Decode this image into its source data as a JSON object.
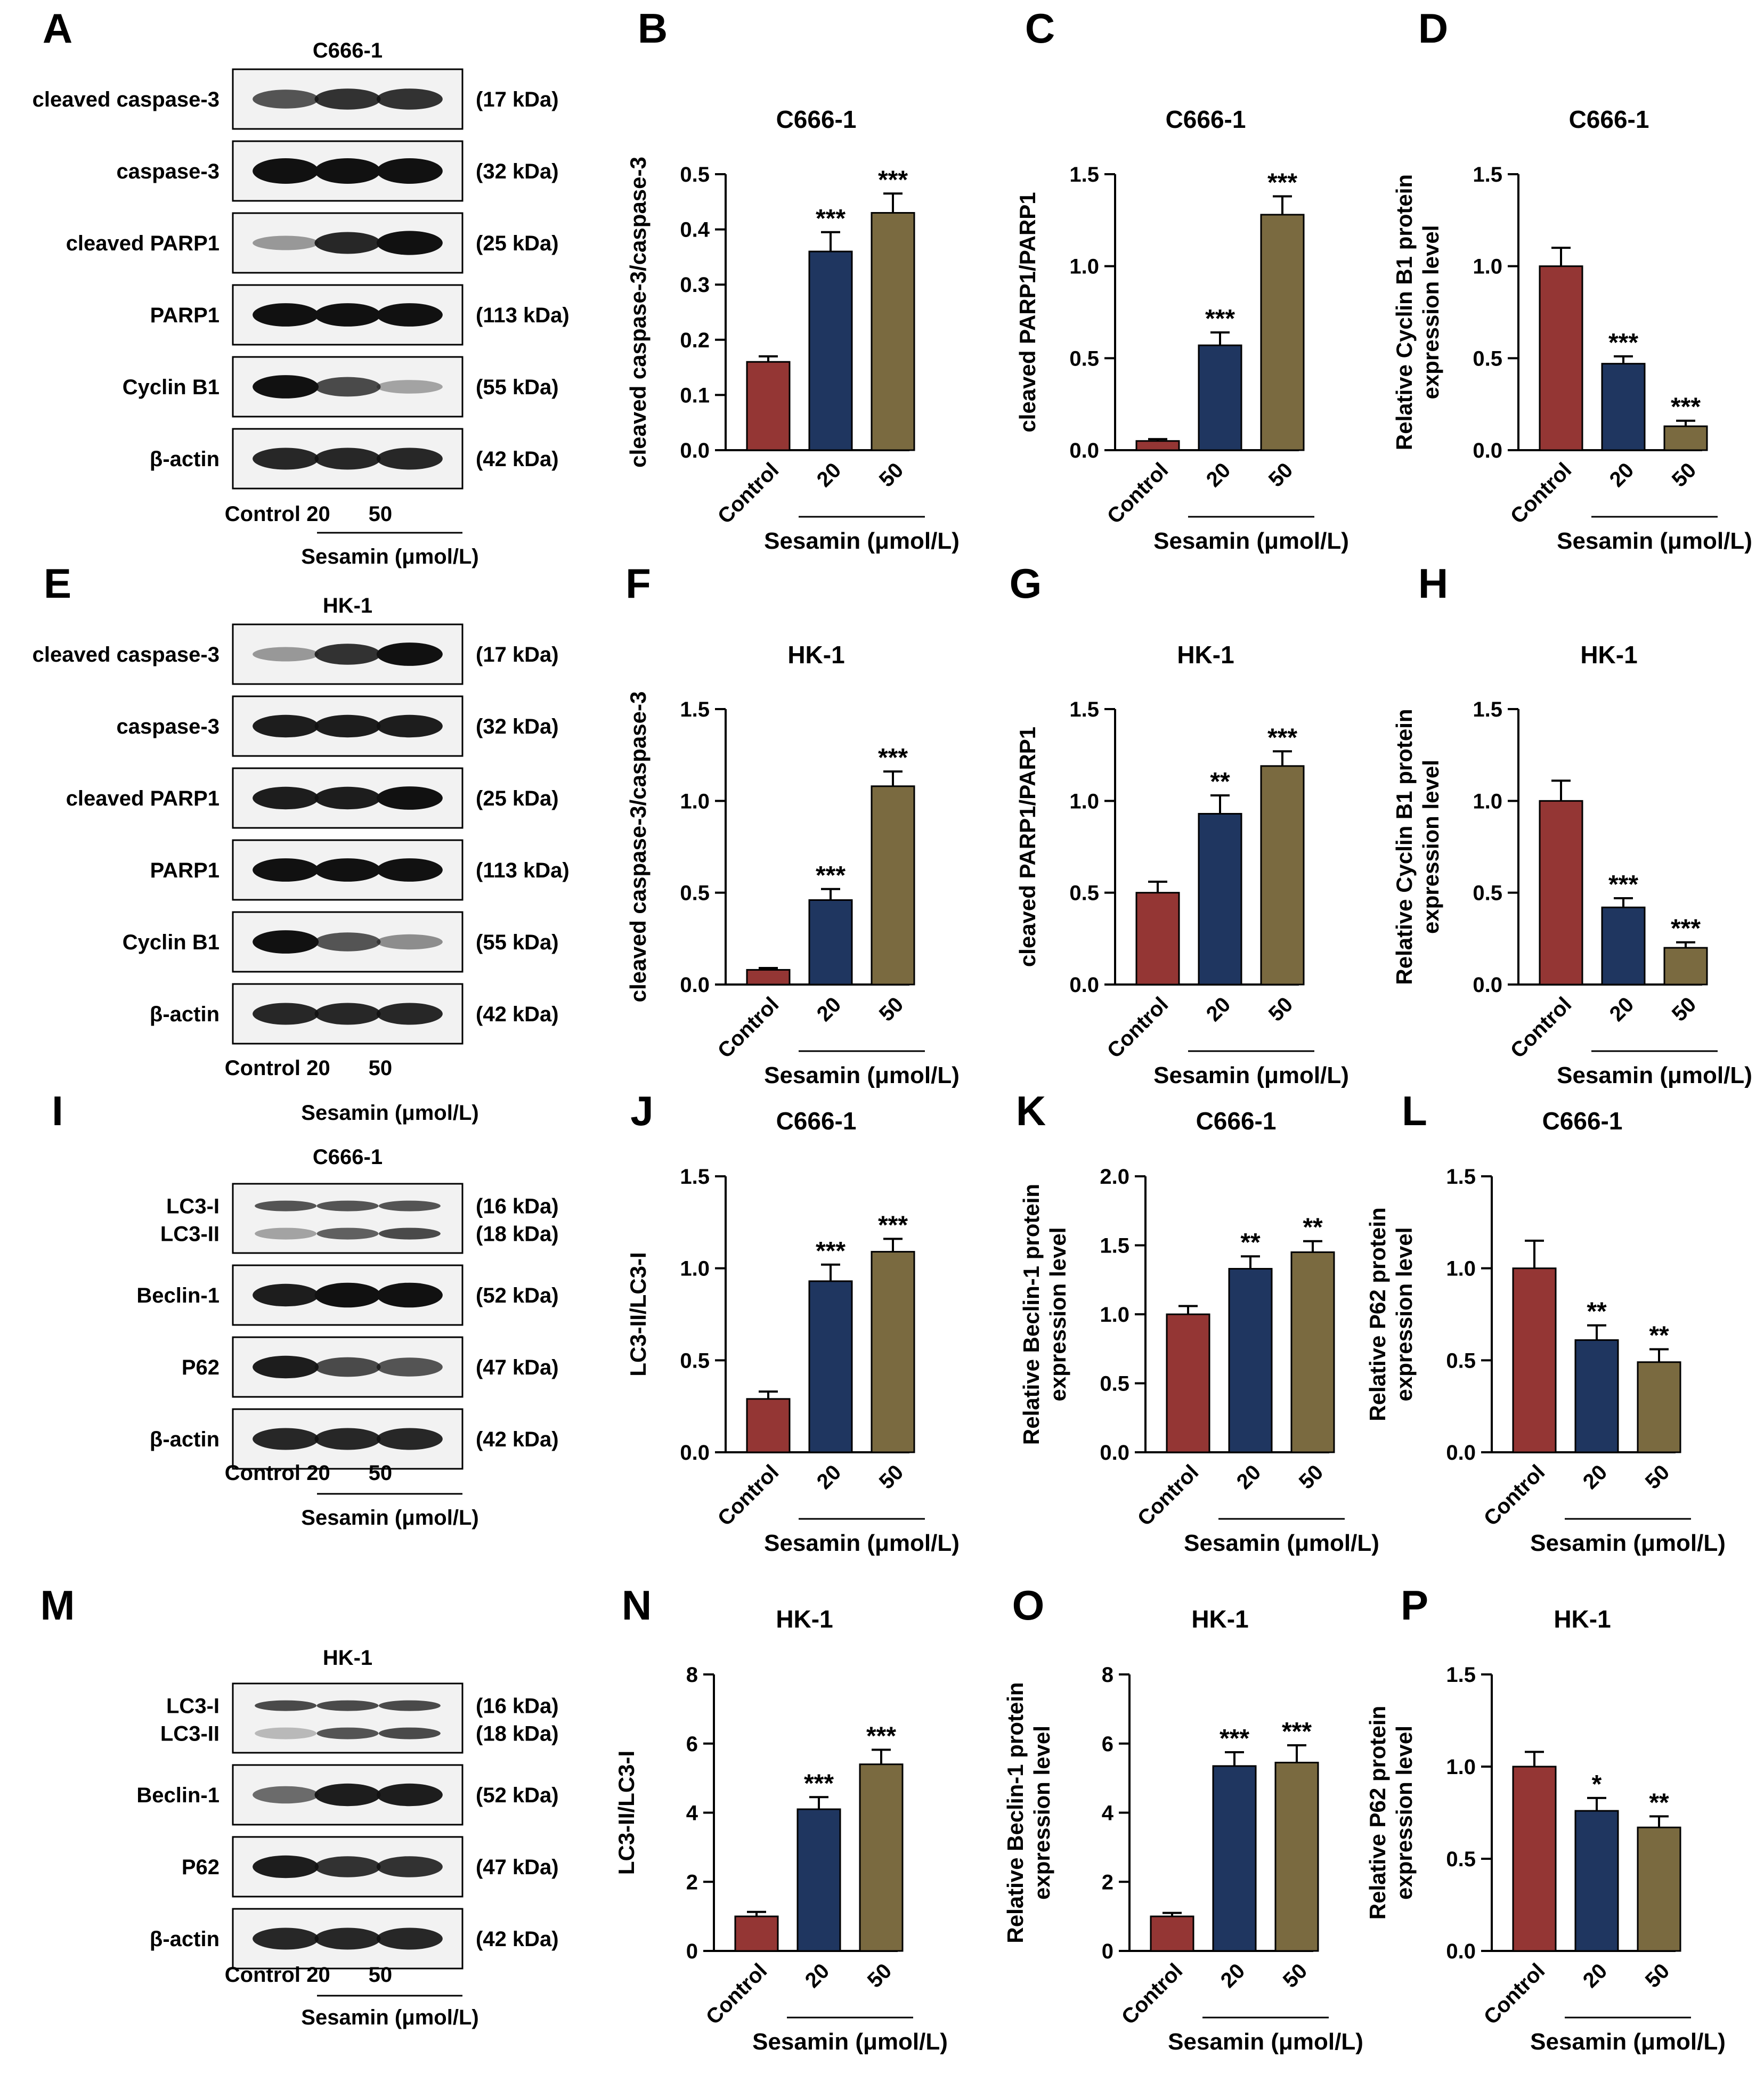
{
  "colors": {
    "control": "#943634",
    "dose20": "#1f3660",
    "dose50": "#7a6a40",
    "axis": "#000000",
    "blot_bg": "#f2f2f2",
    "band": "#111111"
  },
  "panel_letters": [
    "A",
    "B",
    "C",
    "D",
    "E",
    "F",
    "G",
    "H",
    "I",
    "J",
    "K",
    "L",
    "M",
    "N",
    "O",
    "P"
  ],
  "blots": [
    {
      "letter": "A",
      "cell": "C666-1",
      "rows": [
        {
          "label": "cleaved caspase-3",
          "kda": "(17 kDa)",
          "intensity": [
            0.55,
            0.7,
            0.7
          ]
        },
        {
          "label": "caspase-3",
          "kda": "(32 kDa)",
          "intensity": [
            1,
            1,
            1
          ]
        },
        {
          "label": "cleaved PARP1",
          "kda": "(25 kDa)",
          "intensity": [
            0.25,
            0.75,
            0.9
          ]
        },
        {
          "label": "PARP1",
          "kda": "(113 kDa)",
          "intensity": [
            0.85,
            0.85,
            0.85
          ]
        },
        {
          "label": "Cyclin B1",
          "kda": "(55 kDa)",
          "intensity": [
            0.85,
            0.6,
            0.2
          ]
        },
        {
          "label": "β-actin",
          "kda": "(42 kDa)",
          "intensity": [
            0.75,
            0.75,
            0.75
          ]
        }
      ],
      "xlabels": [
        "Control",
        "20",
        "50"
      ],
      "group_label": "Sesamin (μmol/L)"
    },
    {
      "letter": "E",
      "cell": "HK-1",
      "rows": [
        {
          "label": "cleaved caspase-3",
          "kda": "(17 kDa)",
          "intensity": [
            0.25,
            0.7,
            0.85
          ]
        },
        {
          "label": "caspase-3",
          "kda": "(32 kDa)",
          "intensity": [
            0.8,
            0.8,
            0.8
          ]
        },
        {
          "label": "cleaved PARP1",
          "kda": "(25 kDa)",
          "intensity": [
            0.8,
            0.8,
            0.85
          ]
        },
        {
          "label": "PARP1",
          "kda": "(113 kDa)",
          "intensity": [
            0.85,
            0.85,
            0.85
          ]
        },
        {
          "label": "Cyclin B1",
          "kda": "(55 kDa)",
          "intensity": [
            0.85,
            0.55,
            0.3
          ]
        },
        {
          "label": "β-actin",
          "kda": "(42 kDa)",
          "intensity": [
            0.75,
            0.75,
            0.75
          ]
        }
      ],
      "xlabels": [
        "Control",
        "20",
        "50"
      ],
      "group_label": "Sesamin (μmol/L)"
    },
    {
      "letter": "I",
      "cell": "C666-1",
      "rows": [
        {
          "label": "LC3-I",
          "label2": "LC3-II",
          "kda": "(16 kDa)",
          "kda2": "(18 kDa)",
          "intensity": [
            0.7,
            0.7,
            0.7
          ],
          "intensity2": [
            0.35,
            0.65,
            0.75
          ]
        },
        {
          "label": "Beclin-1",
          "kda": "(52 kDa)",
          "intensity": [
            0.8,
            0.95,
            0.95
          ]
        },
        {
          "label": "P62",
          "kda": "(47 kDa)",
          "intensity": [
            0.8,
            0.6,
            0.55
          ]
        },
        {
          "label": "β-actin",
          "kda": "(42 kDa)",
          "intensity": [
            0.75,
            0.75,
            0.75
          ]
        }
      ],
      "xlabels": [
        "Control",
        "20",
        "50"
      ],
      "group_label": "Sesamin (μmol/L)"
    },
    {
      "letter": "M",
      "cell": "HK-1",
      "rows": [
        {
          "label": "LC3-I",
          "label2": "LC3-II",
          "kda": "(16 kDa)",
          "kda2": "(18 kDa)",
          "intensity": [
            0.75,
            0.75,
            0.75
          ],
          "intensity2": [
            0.25,
            0.7,
            0.75
          ]
        },
        {
          "label": "Beclin-1",
          "kda": "(52 kDa)",
          "intensity": [
            0.45,
            0.8,
            0.8
          ]
        },
        {
          "label": "P62",
          "kda": "(47 kDa)",
          "intensity": [
            0.8,
            0.7,
            0.7
          ]
        },
        {
          "label": "β-actin",
          "kda": "(42 kDa)",
          "intensity": [
            0.75,
            0.75,
            0.75
          ]
        }
      ],
      "xlabels": [
        "Control",
        "20",
        "50"
      ],
      "group_label": "Sesamin (μmol/L)"
    }
  ],
  "chart_data": [
    {
      "letter": "B",
      "type": "bar",
      "title": "C666-1",
      "ylabel": "cleaved caspase-3/caspase-3",
      "ylim": [
        0,
        0.5
      ],
      "yticks": [
        "0.0",
        "0.1",
        "0.2",
        "0.3",
        "0.4",
        "0.5"
      ],
      "tickvals": [
        0,
        0.1,
        0.2,
        0.3,
        0.4,
        0.5
      ],
      "categories": [
        "Control",
        "20",
        "50"
      ],
      "values": [
        0.16,
        0.36,
        0.43
      ],
      "errors": [
        0.01,
        0.035,
        0.035
      ],
      "significance": [
        "",
        "***",
        "***"
      ],
      "xlabel": "Sesamin (μmol/L)"
    },
    {
      "letter": "C",
      "type": "bar",
      "title": "C666-1",
      "ylabel": "cleaved PARP1/PARP1",
      "ylim": [
        0,
        1.5
      ],
      "yticks": [
        "0.0",
        "0.5",
        "1.0",
        "1.5"
      ],
      "tickvals": [
        0,
        0.5,
        1,
        1.5
      ],
      "categories": [
        "Control",
        "20",
        "50"
      ],
      "values": [
        0.05,
        0.57,
        1.28
      ],
      "errors": [
        0.01,
        0.07,
        0.1
      ],
      "significance": [
        "",
        "***",
        "***"
      ],
      "xlabel": "Sesamin (μmol/L)"
    },
    {
      "letter": "D",
      "type": "bar",
      "title": "C666-1",
      "ylabel": "Relative Cyclin B1 protein",
      "ylabel2": "expression level",
      "ylim": [
        0,
        1.5
      ],
      "yticks": [
        "0.0",
        "0.5",
        "1.0",
        "1.5"
      ],
      "tickvals": [
        0,
        0.5,
        1,
        1.5
      ],
      "categories": [
        "Control",
        "20",
        "50"
      ],
      "values": [
        1.0,
        0.47,
        0.13
      ],
      "errors": [
        0.1,
        0.04,
        0.03
      ],
      "significance": [
        "",
        "***",
        "***"
      ],
      "xlabel": "Sesamin (μmol/L)"
    },
    {
      "letter": "F",
      "type": "bar",
      "title": "HK-1",
      "ylabel": "cleaved caspase-3/caspase-3",
      "ylim": [
        0,
        1.5
      ],
      "yticks": [
        "0.0",
        "0.5",
        "1.0",
        "1.5"
      ],
      "tickvals": [
        0,
        0.5,
        1,
        1.5
      ],
      "categories": [
        "Control",
        "20",
        "50"
      ],
      "values": [
        0.08,
        0.46,
        1.08
      ],
      "errors": [
        0.01,
        0.06,
        0.08
      ],
      "significance": [
        "",
        "***",
        "***"
      ],
      "xlabel": "Sesamin (μmol/L)"
    },
    {
      "letter": "G",
      "type": "bar",
      "title": "HK-1",
      "ylabel": "cleaved PARP1/PARP1",
      "ylim": [
        0,
        1.5
      ],
      "yticks": [
        "0.0",
        "0.5",
        "1.0",
        "1.5"
      ],
      "tickvals": [
        0,
        0.5,
        1,
        1.5
      ],
      "categories": [
        "Control",
        "20",
        "50"
      ],
      "values": [
        0.5,
        0.93,
        1.19
      ],
      "errors": [
        0.06,
        0.1,
        0.08
      ],
      "significance": [
        "",
        "**",
        "***"
      ],
      "xlabel": "Sesamin (μmol/L)"
    },
    {
      "letter": "H",
      "type": "bar",
      "title": "HK-1",
      "ylabel": "Relative Cyclin B1 protein",
      "ylabel2": "expression level",
      "ylim": [
        0,
        1.5
      ],
      "yticks": [
        "0.0",
        "0.5",
        "1.0",
        "1.5"
      ],
      "tickvals": [
        0,
        0.5,
        1,
        1.5
      ],
      "categories": [
        "Control",
        "20",
        "50"
      ],
      "values": [
        1.0,
        0.42,
        0.2
      ],
      "errors": [
        0.11,
        0.05,
        0.03
      ],
      "significance": [
        "",
        "***",
        "***"
      ],
      "xlabel": "Sesamin (μmol/L)"
    },
    {
      "letter": "J",
      "type": "bar",
      "title": "C666-1",
      "ylabel": "LC3-II/LC3-I",
      "ylim": [
        0,
        1.5
      ],
      "yticks": [
        "0.0",
        "0.5",
        "1.0",
        "1.5"
      ],
      "tickvals": [
        0,
        0.5,
        1,
        1.5
      ],
      "categories": [
        "Control",
        "20",
        "50"
      ],
      "values": [
        0.29,
        0.93,
        1.09
      ],
      "errors": [
        0.04,
        0.09,
        0.07
      ],
      "significance": [
        "",
        "***",
        "***"
      ],
      "xlabel": "Sesamin (μmol/L)"
    },
    {
      "letter": "K",
      "type": "bar",
      "title": "C666-1",
      "ylabel": "Relative Beclin-1 protein",
      "ylabel2": "expression level",
      "ylim": [
        0,
        2.0
      ],
      "yticks": [
        "0.0",
        "0.5",
        "1.0",
        "1.5",
        "2.0"
      ],
      "tickvals": [
        0,
        0.5,
        1,
        1.5,
        2
      ],
      "categories": [
        "Control",
        "20",
        "50"
      ],
      "values": [
        1.0,
        1.33,
        1.45
      ],
      "errors": [
        0.06,
        0.09,
        0.08
      ],
      "significance": [
        "",
        "**",
        "**"
      ],
      "xlabel": "Sesamin (μmol/L)"
    },
    {
      "letter": "L",
      "type": "bar",
      "title": "C666-1",
      "ylabel": "Relative P62 protein",
      "ylabel2": "expression level",
      "ylim": [
        0,
        1.5
      ],
      "yticks": [
        "0.0",
        "0.5",
        "1.0",
        "1.5"
      ],
      "tickvals": [
        0,
        0.5,
        1,
        1.5
      ],
      "categories": [
        "Control",
        "20",
        "50"
      ],
      "values": [
        1.0,
        0.61,
        0.49
      ],
      "errors": [
        0.15,
        0.08,
        0.07
      ],
      "significance": [
        "",
        "**",
        "**"
      ],
      "xlabel": "Sesamin (μmol/L)"
    },
    {
      "letter": "N",
      "type": "bar",
      "title": "HK-1",
      "ylabel": "LC3-II/LC3-I",
      "ylim": [
        0,
        8
      ],
      "yticks": [
        "0",
        "2",
        "4",
        "6",
        "8"
      ],
      "tickvals": [
        0,
        2,
        4,
        6,
        8
      ],
      "categories": [
        "Control",
        "20",
        "50"
      ],
      "values": [
        1.0,
        4.1,
        5.4
      ],
      "errors": [
        0.13,
        0.35,
        0.42
      ],
      "significance": [
        "",
        "***",
        "***"
      ],
      "xlabel": "Sesamin (μmol/L)"
    },
    {
      "letter": "O",
      "type": "bar",
      "title": "HK-1",
      "ylabel": "Relative Beclin-1 protein",
      "ylabel2": "expression level",
      "ylim": [
        0,
        8
      ],
      "yticks": [
        "0",
        "2",
        "4",
        "6",
        "8"
      ],
      "tickvals": [
        0,
        2,
        4,
        6,
        8
      ],
      "categories": [
        "Control",
        "20",
        "50"
      ],
      "values": [
        1.0,
        5.35,
        5.45
      ],
      "errors": [
        0.1,
        0.4,
        0.5
      ],
      "significance": [
        "",
        "***",
        "***"
      ],
      "xlabel": "Sesamin (μmol/L)"
    },
    {
      "letter": "P",
      "type": "bar",
      "title": "HK-1",
      "ylabel": "Relative P62 protein",
      "ylabel2": "expression level",
      "ylim": [
        0,
        1.5
      ],
      "yticks": [
        "0.0",
        "0.5",
        "1.0",
        "1.5"
      ],
      "tickvals": [
        0,
        0.5,
        1,
        1.5
      ],
      "categories": [
        "Control",
        "20",
        "50"
      ],
      "values": [
        1.0,
        0.76,
        0.67
      ],
      "errors": [
        0.08,
        0.07,
        0.06
      ],
      "significance": [
        "",
        "*",
        "**"
      ],
      "xlabel": "Sesamin (μmol/L)"
    }
  ]
}
